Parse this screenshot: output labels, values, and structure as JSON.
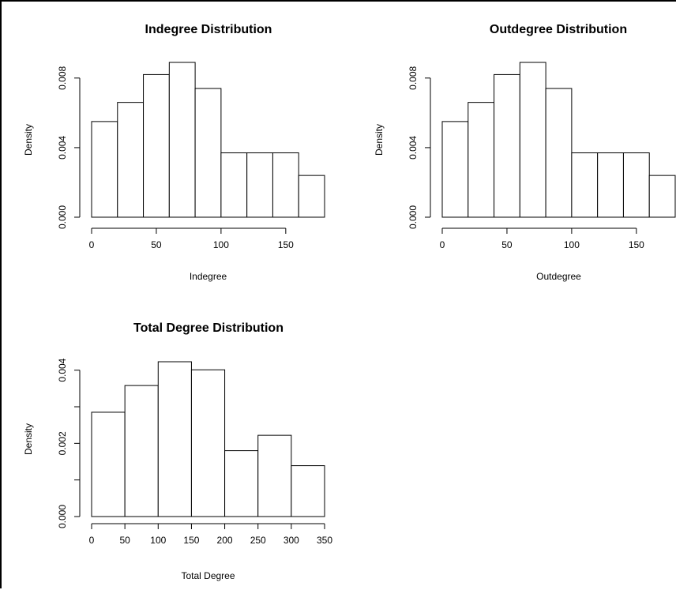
{
  "chart_data": [
    {
      "type": "bar",
      "title": "Indegree Distribution",
      "xlabel": "Indegree",
      "ylabel": "Density",
      "bins": [
        [
          0,
          20
        ],
        [
          20,
          40
        ],
        [
          40,
          60
        ],
        [
          60,
          80
        ],
        [
          80,
          100
        ],
        [
          100,
          120
        ],
        [
          120,
          140
        ],
        [
          140,
          160
        ],
        [
          160,
          180
        ]
      ],
      "values": [
        0.0055,
        0.0066,
        0.0082,
        0.0089,
        0.0074,
        0.0037,
        0.0037,
        0.0037,
        0.0024
      ],
      "xlim": [
        0,
        180
      ],
      "ylim": [
        0,
        0.0089
      ],
      "xticks": [
        0,
        50,
        100,
        150
      ],
      "xtick_labels": [
        "0",
        "50",
        "100",
        "150"
      ],
      "yticks": [
        0,
        0.004,
        0.008
      ],
      "ytick_labels": [
        "0.000",
        "0.004",
        "0.008"
      ],
      "grid": false
    },
    {
      "type": "bar",
      "title": "Outdegree Distribution",
      "xlabel": "Outdegree",
      "ylabel": "Density",
      "bins": [
        [
          0,
          20
        ],
        [
          20,
          40
        ],
        [
          40,
          60
        ],
        [
          60,
          80
        ],
        [
          80,
          100
        ],
        [
          100,
          120
        ],
        [
          120,
          140
        ],
        [
          140,
          160
        ],
        [
          160,
          180
        ]
      ],
      "values": [
        0.0055,
        0.0066,
        0.0082,
        0.0089,
        0.0074,
        0.0037,
        0.0037,
        0.0037,
        0.0024
      ],
      "xlim": [
        0,
        180
      ],
      "ylim": [
        0,
        0.0089
      ],
      "xticks": [
        0,
        50,
        100,
        150
      ],
      "xtick_labels": [
        "0",
        "50",
        "100",
        "150"
      ],
      "yticks": [
        0,
        0.004,
        0.008
      ],
      "ytick_labels": [
        "0.000",
        "0.004",
        "0.008"
      ],
      "grid": false
    },
    {
      "type": "bar",
      "title": "Total Degree Distribution",
      "xlabel": "Total Degree",
      "ylabel": "Density",
      "bins": [
        [
          0,
          50
        ],
        [
          50,
          100
        ],
        [
          100,
          150
        ],
        [
          150,
          200
        ],
        [
          200,
          250
        ],
        [
          250,
          300
        ],
        [
          300,
          350
        ]
      ],
      "values": [
        0.00285,
        0.00358,
        0.00423,
        0.00401,
        0.0018,
        0.00222,
        0.00139
      ],
      "xlim": [
        0,
        350
      ],
      "ylim": [
        0,
        0.00423
      ],
      "xticks": [
        0,
        50,
        100,
        150,
        200,
        250,
        300,
        350
      ],
      "xtick_labels": [
        "0",
        "50",
        "100",
        "150",
        "200",
        "250",
        "300",
        "350"
      ],
      "yticks": [
        0,
        0.001,
        0.002,
        0.003,
        0.004
      ],
      "ytick_labels": [
        "0.000",
        "",
        "0.002",
        "",
        "0.004"
      ],
      "grid": false
    }
  ]
}
